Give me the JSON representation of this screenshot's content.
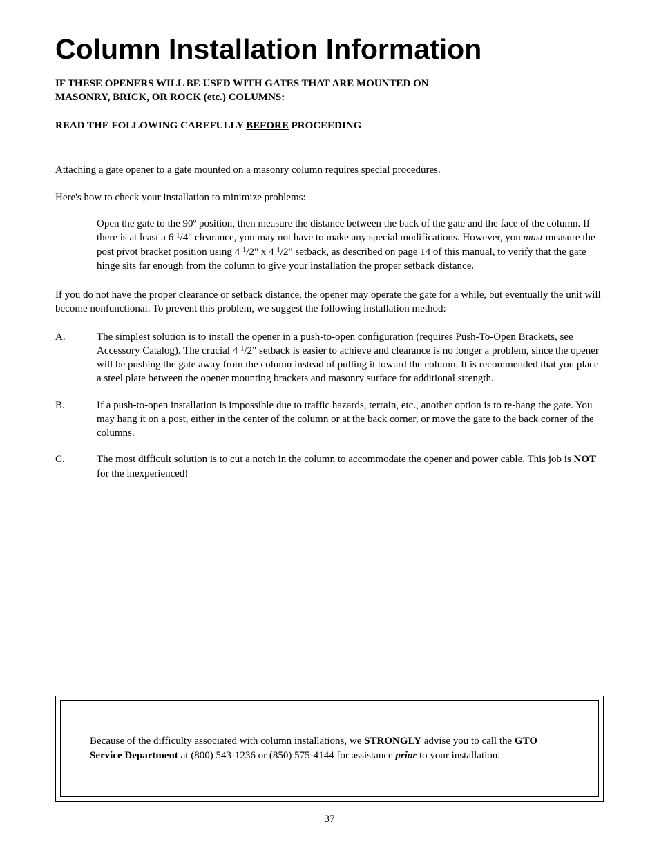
{
  "title": "Column Installation Information",
  "intro_line1_if": "I",
  "intro_line1_rest": "F THESE OPENERS WILL BE USED WITH GATES THAT ARE MOUNTED ON",
  "intro_line2": "MASONRY, BRICK, OR ROCK (etc.) COLUMNS:",
  "read_pre": "READ THE FOLLOWING CAREFULLY ",
  "read_underline": "BEFORE",
  "read_post": " PROCEEDING",
  "para1": "Attaching a gate opener to a gate mounted on a masonry column requires special procedures.",
  "para2": "Here's how to check your installation to minimize problems:",
  "indent_a": "Open the gate to the 90º position, then measure the distance between the back of the gate and the face of the column.  If there is at least a 6 ",
  "indent_frac1_sup": "1",
  "indent_frac1_rest": "/4\" clearance, you may not have to make any special modifications. However, you ",
  "indent_must": "must",
  "indent_b": " measure the post pivot bracket position using 4 ",
  "indent_frac2_sup": "1",
  "indent_frac2_rest": "/2\" x 4 ",
  "indent_frac3_sup": "1",
  "indent_frac3_rest": "/2\" setback, as described on page 14 of this manual, to verify that the gate hinge sits far enough from the column to give your installation the proper setback distance.",
  "para3": "If you do not have the proper clearance or setback distance, the opener may operate the gate for a while, but eventually the unit will become nonfunctional.  To prevent this problem, we suggest the following installation method:",
  "listA_letter": "A.",
  "listA_a": "The simplest solution is to install  the opener in a push-to-open configuration (requires Push-To-Open Brackets, see Accessory Catalog).  The crucial 4 ",
  "listA_frac_sup": "1",
  "listA_frac_rest": "/2\" setback is  easier to achieve and clearance is no longer a problem, since the opener will be pushing the gate away from the column instead of pulling it toward the column.  It is recommended that you place a steel plate between the opener mounting brackets and masonry surface for additional strength.",
  "listB_letter": "B.",
  "listB": "If a push-to-open installation is impossible due to traffic hazards, terrain, etc., another option is to re-hang the gate.  You may hang it on a post, either in the center of the column or at the back corner, or move the gate to the back corner of the columns.",
  "listC_letter": "C.",
  "listC_a": "The most difficult solution is to cut a notch in the column to accommodate the opener and power cable.  This job is ",
  "listC_not": "NOT",
  "listC_b": " for the inexperienced!",
  "callout_a": "Because of the difficulty associated with column installations, we ",
  "callout_strongly": "STRONGLY",
  "callout_b": " advise you to call the ",
  "callout_gto": "GTO Service Department",
  "callout_c": " at (800) 543-1236 or (850) 575-4144 for assistance ",
  "callout_prior": "prior",
  "callout_d": " to your installation.",
  "page_number": "37"
}
